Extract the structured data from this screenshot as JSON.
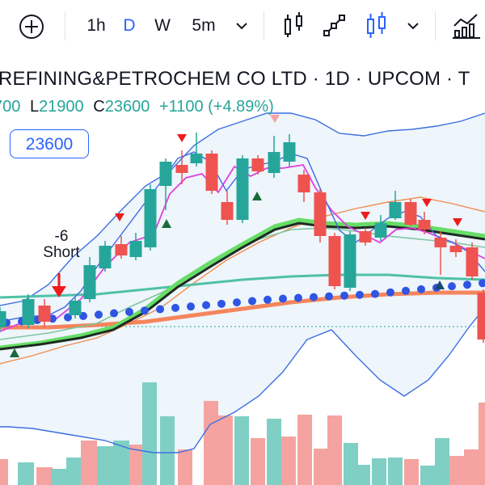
{
  "toolbar": {
    "add_symbol_icon": "plus-circle-icon",
    "intervals": [
      "1h",
      "D",
      "W",
      "5m"
    ],
    "active_interval": "D",
    "interval_dropdown_icon": "chevron-down-icon",
    "chart_type_icons": [
      "bar-chart-icon",
      "line-chart-icon",
      "candlestick-icon"
    ],
    "chart_type_dropdown_icon": "chevron-down-icon",
    "indicators_icon": "indicators-icon"
  },
  "legend": {
    "symbol_text": "REFINING&PETROCHEM CO LTD · 1D · UPCOM · T",
    "ohlc_partial_open": "700",
    "low_label": "L",
    "low_value": "21900",
    "close_label": "C",
    "close_value": "23600",
    "change_text": "+1100 (+4.89%)"
  },
  "price_tag": "23600",
  "signal": {
    "value": "-6",
    "label": "Short"
  },
  "colors": {
    "up": "#26a69a",
    "down": "#ef5350",
    "accent": "#2962ff",
    "bb_fill": "#eef5fb"
  }
}
